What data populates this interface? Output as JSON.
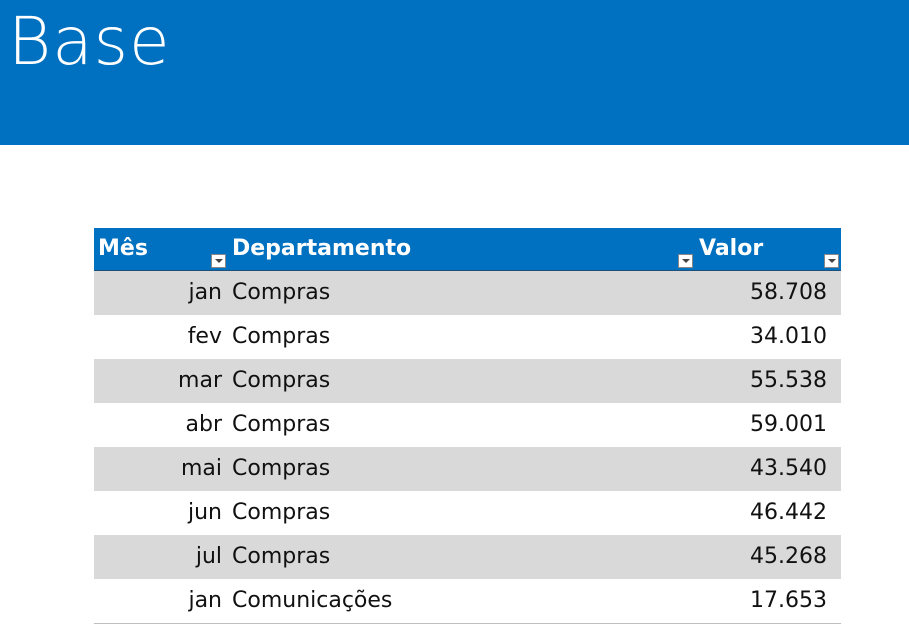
{
  "header": {
    "title": "Base"
  },
  "table": {
    "columns": [
      "Mês",
      "Departamento",
      "Valor"
    ],
    "rows": [
      [
        "jan",
        "Compras",
        "58.708"
      ],
      [
        "fev",
        "Compras",
        "34.010"
      ],
      [
        "mar",
        "Compras",
        "55.538"
      ],
      [
        "abr",
        "Compras",
        "59.001"
      ],
      [
        "mai",
        "Compras",
        "43.540"
      ],
      [
        "jun",
        "Compras",
        "46.442"
      ],
      [
        "jul",
        "Compras",
        "45.268"
      ],
      [
        "jan",
        "Comunicações",
        "17.653"
      ]
    ]
  }
}
